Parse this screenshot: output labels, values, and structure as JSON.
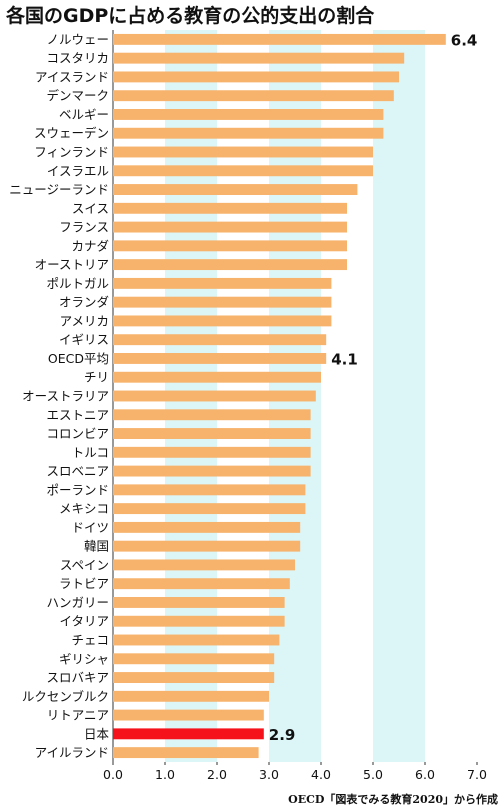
{
  "chart_data": {
    "type": "bar",
    "orientation": "horizontal",
    "title": "各国のGDPに占める教育の公的支出の割合",
    "source": "OECD「図表でみる教育2020」から作成",
    "categories": [
      "ノルウェー",
      "コスタリカ",
      "アイスランド",
      "デンマーク",
      "ベルギー",
      "スウェーデン",
      "フィンランド",
      "イスラエル",
      "ニュージーランド",
      "スイス",
      "フランス",
      "カナダ",
      "オーストリア",
      "ポルトガル",
      "オランダ",
      "アメリカ",
      "イギリス",
      "OECD平均",
      "チリ",
      "オーストラリア",
      "エストニア",
      "コロンビア",
      "トルコ",
      "スロベニア",
      "ポーランド",
      "メキシコ",
      "ドイツ",
      "韓国",
      "スペイン",
      "ラトビア",
      "ハンガリー",
      "イタリア",
      "チェコ",
      "ギリシャ",
      "スロバキア",
      "ルクセンブルク",
      "リトアニア",
      "日本",
      "アイルランド"
    ],
    "values": [
      6.4,
      5.6,
      5.5,
      5.4,
      5.2,
      5.2,
      5.0,
      5.0,
      4.7,
      4.5,
      4.5,
      4.5,
      4.5,
      4.2,
      4.2,
      4.2,
      4.1,
      4.1,
      4.0,
      3.9,
      3.8,
      3.8,
      3.8,
      3.8,
      3.7,
      3.7,
      3.6,
      3.6,
      3.5,
      3.4,
      3.3,
      3.3,
      3.2,
      3.1,
      3.1,
      3.0,
      2.9,
      2.9,
      2.8
    ],
    "data_labels": [
      {
        "category": "ノルウェー",
        "text": "6.4"
      },
      {
        "category": "OECD平均",
        "text": "4.1"
      },
      {
        "category": "日本",
        "text": "2.9"
      }
    ],
    "highlight_category": "日本",
    "xlim": [
      0,
      7
    ],
    "xticks": [
      "0.0",
      "1.0",
      "2.0",
      "3.0",
      "4.0",
      "5.0",
      "6.0",
      "7.0"
    ],
    "bar_color": "#f7b26b",
    "highlight_color": "#f5121b",
    "band_color": "#dcf6f7",
    "grid": true
  }
}
